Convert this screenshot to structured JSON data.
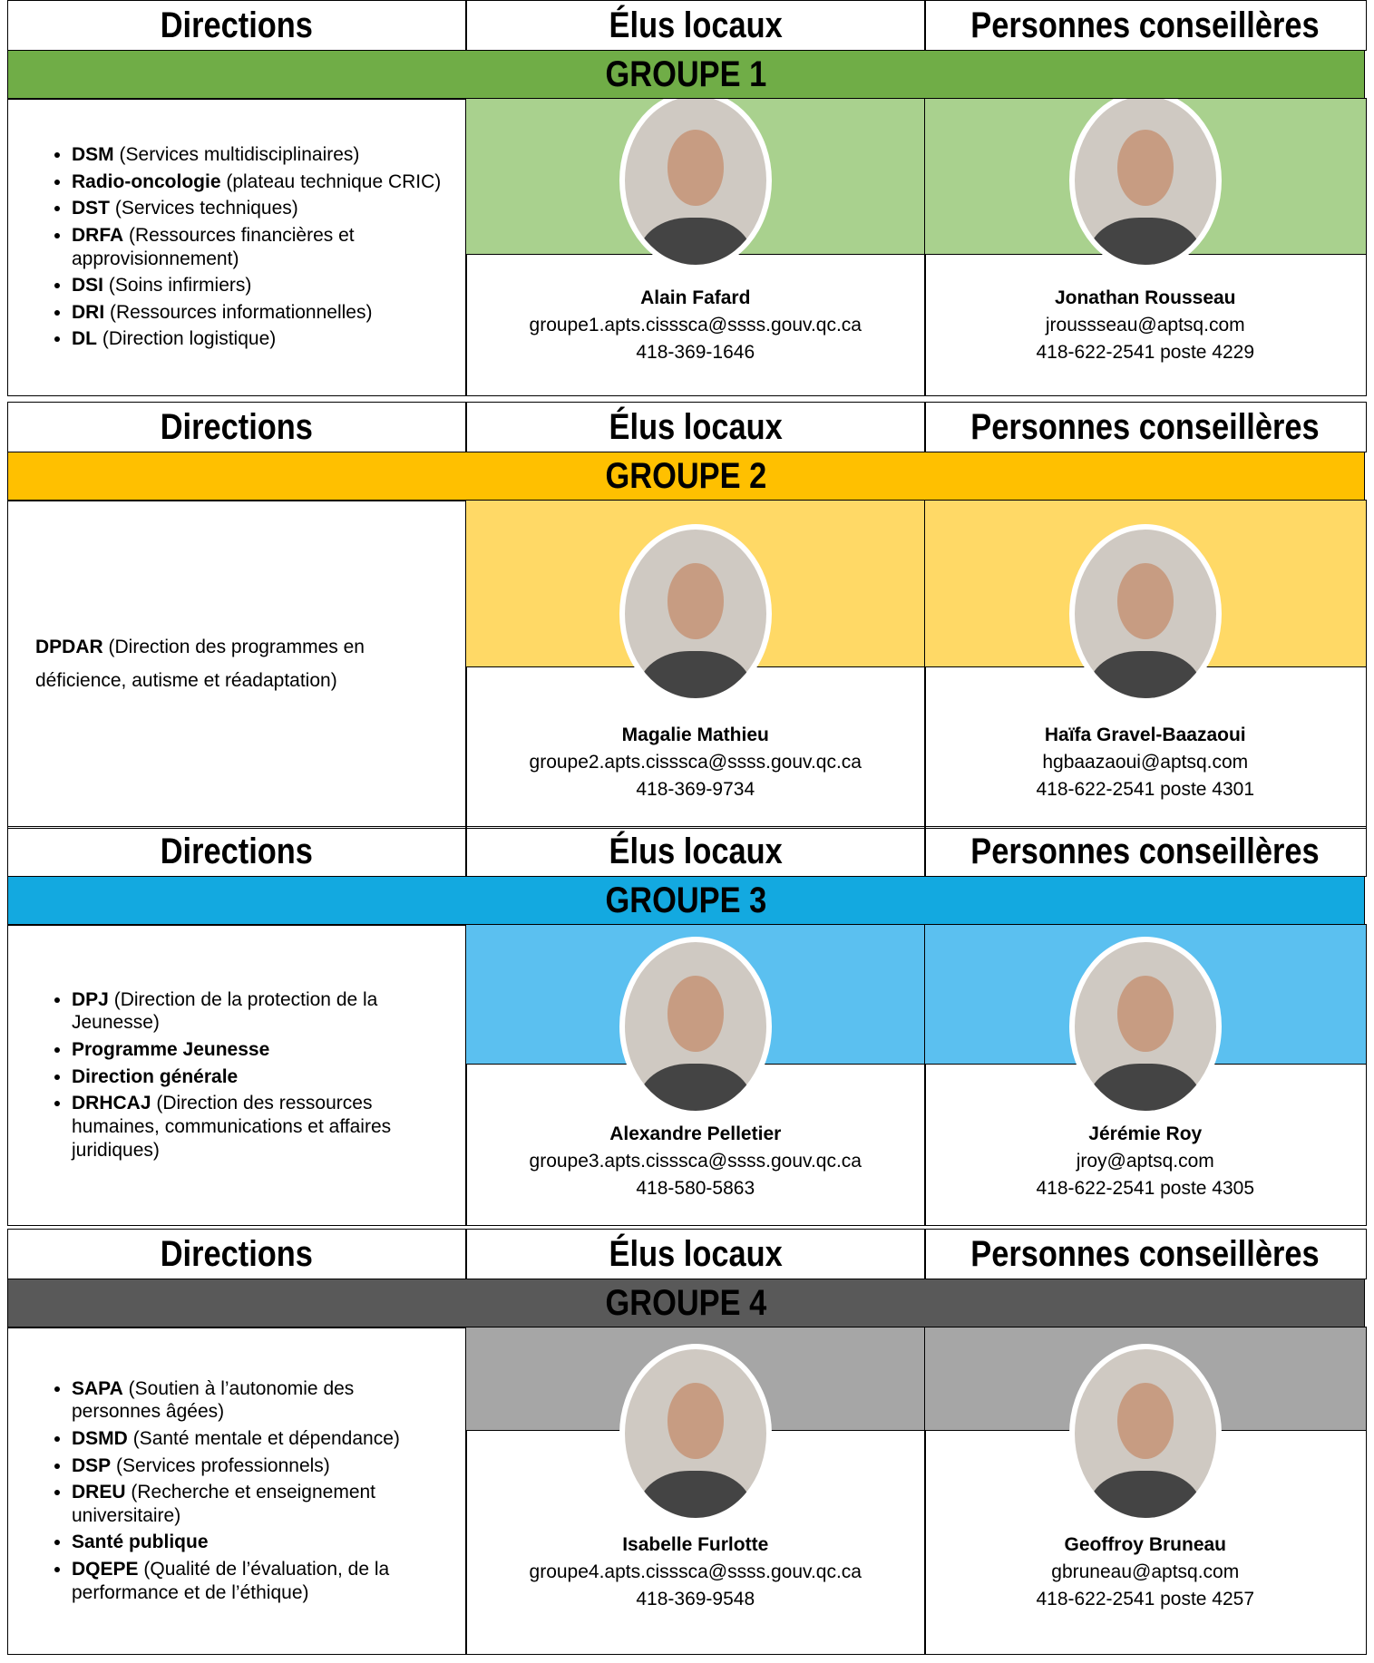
{
  "groups": [
    {
      "headers": [
        "Directions",
        "Élus locaux",
        "Personnes conseillères"
      ],
      "title": "GROUPE 1",
      "color": "#70ad47",
      "light_color": "#a9d18e",
      "directions": {
        "items": [
          {
            "bold": "DSM",
            "text": "(Services multidisciplinaires)"
          },
          {
            "bold": "Radio-oncologie",
            "text": "(plateau technique CRIC)"
          },
          {
            "bold": "DST",
            "text": "(Services techniques)"
          },
          {
            "bold": "DRFA",
            "text": "(Ressources financières et approvisionnement)"
          },
          {
            "bold": "DSI",
            "text": "(Soins infirmiers)"
          },
          {
            "bold": "DRI",
            "text": "(Ressources informationnelles)"
          },
          {
            "bold": "DL",
            "text": "(Direction logistique)"
          }
        ]
      },
      "elu": {
        "name": "Alain Fafard",
        "email": "groupe1.apts.cisssca@ssss.gouv.qc.ca",
        "phone": "418-369-1646"
      },
      "conseiller": {
        "name": "Jonathan Rousseau",
        "email": "jroussseau@aptsq.com",
        "phone": "418-622-2541 poste 4229"
      }
    },
    {
      "headers": [
        "Directions",
        "Élus locaux",
        "Personnes conseillères"
      ],
      "title": "GROUPE 2",
      "color": "#ffc000",
      "light_color": "#ffd966",
      "directions": {
        "paragraph": {
          "bold": "DPDAR",
          "text": "(Direction des programmes en déficience, autisme et réadaptation)"
        }
      },
      "elu": {
        "name": "Magalie Mathieu",
        "email": "groupe2.apts.cisssca@ssss.gouv.qc.ca",
        "phone": "418-369-9734"
      },
      "conseiller": {
        "name": "Haïfa Gravel-Baazaoui",
        "email": "hgbaazaoui@aptsq.com",
        "phone": "418-622-2541 poste 4301"
      }
    },
    {
      "headers": [
        "Directions",
        "Élus locaux",
        "Personnes conseillères"
      ],
      "title": "GROUPE 3",
      "color": "#13a9e0",
      "light_color": "#5bc0f0",
      "directions": {
        "items": [
          {
            "bold": "DPJ",
            "text": "(Direction de la protection de la Jeunesse)"
          },
          {
            "bold": "Programme Jeunesse"
          },
          {
            "bold": "Direction générale"
          },
          {
            "bold": "DRHCAJ",
            "text": "(Direction des ressources humaines, communications et affaires juridiques)"
          }
        ]
      },
      "elu": {
        "name": "Alexandre Pelletier",
        "email": "groupe3.apts.cisssca@ssss.gouv.qc.ca",
        "phone": "418-580-5863"
      },
      "conseiller": {
        "name": "Jérémie Roy",
        "email": "jroy@aptsq.com",
        "phone": "418-622-2541 poste 4305"
      }
    },
    {
      "headers": [
        "Directions",
        "Élus locaux",
        "Personnes conseillères"
      ],
      "title": "GROUPE 4",
      "color": "#595959",
      "light_color": "#a6a6a6",
      "directions": {
        "items": [
          {
            "bold": "SAPA",
            "text": "(Soutien à l’autonomie des personnes âgées)"
          },
          {
            "bold": "DSMD",
            "text": "(Santé mentale et dépendance)"
          },
          {
            "bold": "DSP",
            "text": "(Services professionnels)"
          },
          {
            "bold": "DREU",
            "text": "(Recherche et enseignement universitaire)"
          },
          {
            "bold": "Santé publique"
          },
          {
            "bold": "DQEPE",
            "text": "(Qualité de l’évaluation, de la performance et de l’éthique)"
          }
        ]
      },
      "elu": {
        "name": "Isabelle Furlotte",
        "email": "groupe4.apts.cisssca@ssss.gouv.qc.ca",
        "phone": "418-369-9548"
      },
      "conseiller": {
        "name": "Geoffroy Bruneau",
        "email": "gbruneau@aptsq.com",
        "phone": "418-622-2541 poste 4257"
      }
    }
  ]
}
